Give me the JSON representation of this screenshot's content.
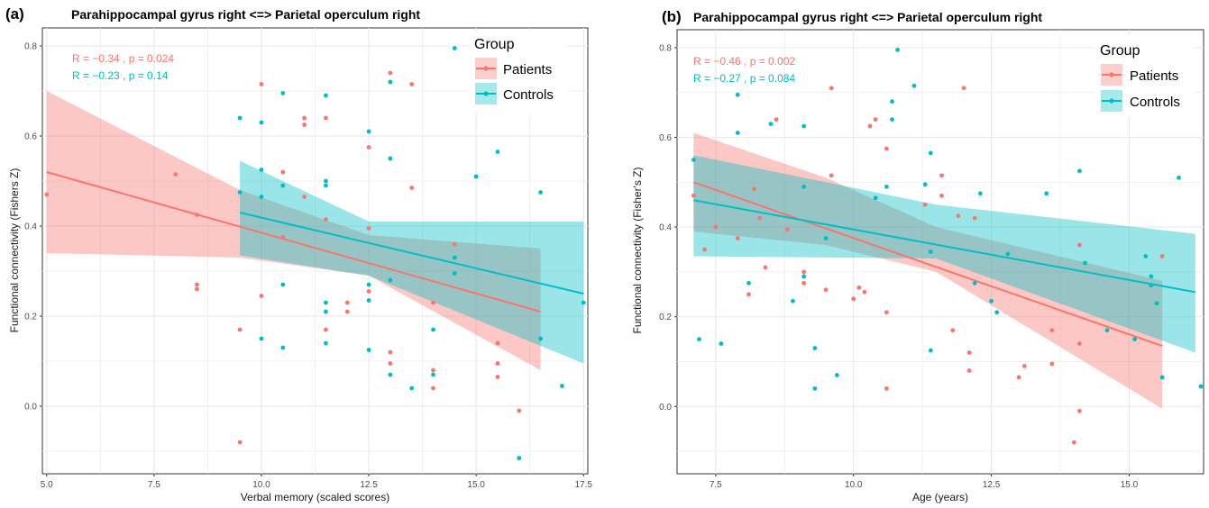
{
  "colors": {
    "patients": "#F8766D",
    "controls": "#00BFC4",
    "grid": "#ebebeb",
    "panel_border": "#333333"
  },
  "chart_data": [
    {
      "type": "scatter",
      "panel_label": "(a)",
      "title": "Parahippocampal gyrus right <=> Parietal operculum right",
      "xlabel": "Verbal memory (scaled scores)",
      "ylabel": "Functional connectivity (Fishers Z)",
      "xlim": [
        4.9,
        17.6
      ],
      "ylim": [
        -0.15,
        0.84
      ],
      "xticks": [
        5.0,
        7.5,
        10.0,
        12.5,
        15.0,
        17.5
      ],
      "xtick_labels": [
        "5.0",
        "7.5",
        "10.0",
        "12.5",
        "15.0",
        "17.5"
      ],
      "yticks": [
        0.0,
        0.2,
        0.4,
        0.6,
        0.8
      ],
      "ytick_labels": [
        "0.0",
        "0.2",
        "0.4",
        "0.6",
        "0.8"
      ],
      "grid": true,
      "legend": {
        "title": "Group",
        "position": "top-right"
      },
      "annotations": [
        {
          "series": "Patients",
          "text": "R = −0.34 , p = 0.024"
        },
        {
          "series": "Controls",
          "text": "R = −0.23 , p = 0.14"
        }
      ],
      "series": [
        {
          "name": "Patients",
          "color": "#F8766D",
          "fit": {
            "x": [
              5.0,
              16.5
            ],
            "y": [
              0.52,
              0.21
            ]
          },
          "band": {
            "x": [
              5.0,
              9.5,
              12.5,
              16.5
            ],
            "upper": [
              0.7,
              0.48,
              0.38,
              0.35
            ],
            "lower": [
              0.34,
              0.33,
              0.29,
              0.08
            ]
          },
          "points": [
            [
              5.0,
              0.47
            ],
            [
              8.0,
              0.515
            ],
            [
              8.5,
              0.425
            ],
            [
              8.5,
              0.27
            ],
            [
              8.5,
              0.26
            ],
            [
              9.5,
              0.17
            ],
            [
              9.5,
              -0.08
            ],
            [
              10.0,
              0.715
            ],
            [
              10.0,
              0.245
            ],
            [
              10.5,
              0.52
            ],
            [
              10.5,
              0.375
            ],
            [
              11.0,
              0.64
            ],
            [
              11.0,
              0.625
            ],
            [
              11.0,
              0.465
            ],
            [
              11.5,
              0.64
            ],
            [
              11.5,
              0.415
            ],
            [
              11.5,
              0.17
            ],
            [
              12.0,
              0.23
            ],
            [
              12.0,
              0.21
            ],
            [
              12.5,
              0.575
            ],
            [
              12.5,
              0.395
            ],
            [
              12.5,
              0.255
            ],
            [
              13.0,
              0.74
            ],
            [
              13.0,
              0.72
            ],
            [
              13.0,
              0.12
            ],
            [
              13.0,
              0.095
            ],
            [
              13.5,
              0.715
            ],
            [
              13.5,
              0.485
            ],
            [
              14.0,
              0.23
            ],
            [
              14.0,
              0.08
            ],
            [
              14.0,
              0.04
            ],
            [
              14.5,
              0.36
            ],
            [
              14.5,
              0.33
            ],
            [
              15.5,
              0.14
            ],
            [
              15.5,
              0.095
            ],
            [
              15.5,
              0.065
            ],
            [
              16.0,
              -0.01
            ]
          ]
        },
        {
          "name": "Controls",
          "color": "#00BFC4",
          "fit": {
            "x": [
              9.5,
              17.5
            ],
            "y": [
              0.43,
              0.25
            ]
          },
          "band": {
            "x": [
              9.5,
              12.5,
              17.5
            ],
            "upper": [
              0.545,
              0.41,
              0.41
            ],
            "lower": [
              0.335,
              0.29,
              0.095
            ]
          },
          "points": [
            [
              9.5,
              0.64
            ],
            [
              9.5,
              0.475
            ],
            [
              10.0,
              0.63
            ],
            [
              10.0,
              0.525
            ],
            [
              10.0,
              0.465
            ],
            [
              10.0,
              0.15
            ],
            [
              10.5,
              0.695
            ],
            [
              10.5,
              0.49
            ],
            [
              10.5,
              0.27
            ],
            [
              10.5,
              0.13
            ],
            [
              11.5,
              0.69
            ],
            [
              11.5,
              0.5
            ],
            [
              11.5,
              0.49
            ],
            [
              11.5,
              0.23
            ],
            [
              11.5,
              0.21
            ],
            [
              11.5,
              0.14
            ],
            [
              12.5,
              0.61
            ],
            [
              12.5,
              0.27
            ],
            [
              12.5,
              0.235
            ],
            [
              12.5,
              0.125
            ],
            [
              13.0,
              0.72
            ],
            [
              13.0,
              0.55
            ],
            [
              13.0,
              0.28
            ],
            [
              13.0,
              0.07
            ],
            [
              13.5,
              0.04
            ],
            [
              14.0,
              0.17
            ],
            [
              14.0,
              0.07
            ],
            [
              14.5,
              0.795
            ],
            [
              14.5,
              0.33
            ],
            [
              14.5,
              0.295
            ],
            [
              15.0,
              0.51
            ],
            [
              15.5,
              0.565
            ],
            [
              16.0,
              -0.115
            ],
            [
              16.5,
              0.475
            ],
            [
              16.5,
              0.15
            ],
            [
              17.0,
              0.045
            ],
            [
              17.5,
              0.23
            ]
          ]
        }
      ]
    },
    {
      "type": "scatter",
      "panel_label": "(b)",
      "title": "Parahippocampal gyrus right <=> Parietal operculum right",
      "xlabel": "Age (years)",
      "ylabel": "Functional connectivity (Fisher's Z)",
      "xlim": [
        6.8,
        16.35
      ],
      "ylim": [
        -0.15,
        0.84
      ],
      "xticks": [
        7.5,
        10.0,
        12.5,
        15.0
      ],
      "xtick_labels": [
        "7.5",
        "10.0",
        "12.5",
        "15.0"
      ],
      "yticks": [
        0.0,
        0.2,
        0.4,
        0.6,
        0.8
      ],
      "ytick_labels": [
        "0.0",
        "0.2",
        "0.4",
        "0.6",
        "0.8"
      ],
      "grid": true,
      "legend": {
        "title": "Group",
        "position": "top-right"
      },
      "annotations": [
        {
          "series": "Patients",
          "text": "R = −0.46 , p = 0.002"
        },
        {
          "series": "Controls",
          "text": "R = −0.27 , p = 0.084"
        }
      ],
      "series": [
        {
          "name": "Patients",
          "color": "#F8766D",
          "fit": {
            "x": [
              7.1,
              15.6
            ],
            "y": [
              0.5,
              0.135
            ]
          },
          "band": {
            "x": [
              7.1,
              9.5,
              11.5,
              15.6
            ],
            "upper": [
              0.61,
              0.51,
              0.4,
              0.28
            ],
            "lower": [
              0.39,
              0.36,
              0.3,
              -0.005
            ]
          },
          "points": [
            [
              7.1,
              0.47
            ],
            [
              7.3,
              0.35
            ],
            [
              7.5,
              0.4
            ],
            [
              7.9,
              0.375
            ],
            [
              8.1,
              0.25
            ],
            [
              8.2,
              0.485
            ],
            [
              8.3,
              0.42
            ],
            [
              8.4,
              0.31
            ],
            [
              8.6,
              0.64
            ],
            [
              8.8,
              0.395
            ],
            [
              9.1,
              0.3
            ],
            [
              9.1,
              0.275
            ],
            [
              9.6,
              0.71
            ],
            [
              9.6,
              0.515
            ],
            [
              9.5,
              0.26
            ],
            [
              10.1,
              0.265
            ],
            [
              10.2,
              0.255
            ],
            [
              10.0,
              0.24
            ],
            [
              10.3,
              0.625
            ],
            [
              10.4,
              0.64
            ],
            [
              10.6,
              0.575
            ],
            [
              10.6,
              0.21
            ],
            [
              10.6,
              0.04
            ],
            [
              11.3,
              0.45
            ],
            [
              11.6,
              0.515
            ],
            [
              11.6,
              0.47
            ],
            [
              11.8,
              0.17
            ],
            [
              11.9,
              0.425
            ],
            [
              12.0,
              0.71
            ],
            [
              12.1,
              0.12
            ],
            [
              12.1,
              0.08
            ],
            [
              12.2,
              0.42
            ],
            [
              13.0,
              0.065
            ],
            [
              13.1,
              0.09
            ],
            [
              13.6,
              0.17
            ],
            [
              13.6,
              0.095
            ],
            [
              14.0,
              -0.08
            ],
            [
              14.1,
              0.36
            ],
            [
              14.1,
              0.14
            ],
            [
              14.1,
              -0.01
            ],
            [
              15.1,
              0.15
            ],
            [
              15.6,
              0.335
            ]
          ]
        },
        {
          "name": "Controls",
          "color": "#00BFC4",
          "fit": {
            "x": [
              7.1,
              16.2
            ],
            "y": [
              0.46,
              0.255
            ]
          },
          "band": {
            "x": [
              7.1,
              11.5,
              16.2
            ],
            "upper": [
              0.56,
              0.45,
              0.385
            ],
            "lower": [
              0.335,
              0.33,
              0.12
            ]
          },
          "points": [
            [
              7.1,
              0.55
            ],
            [
              7.2,
              0.15
            ],
            [
              7.6,
              0.14
            ],
            [
              7.9,
              0.695
            ],
            [
              7.9,
              0.61
            ],
            [
              8.1,
              0.275
            ],
            [
              8.5,
              0.63
            ],
            [
              8.9,
              0.235
            ],
            [
              9.1,
              0.625
            ],
            [
              9.1,
              0.49
            ],
            [
              9.1,
              0.29
            ],
            [
              9.3,
              0.13
            ],
            [
              9.3,
              0.04
            ],
            [
              9.5,
              0.375
            ],
            [
              9.7,
              0.07
            ],
            [
              10.4,
              0.465
            ],
            [
              10.6,
              0.49
            ],
            [
              10.7,
              0.64
            ],
            [
              10.7,
              0.68
            ],
            [
              10.8,
              0.795
            ],
            [
              11.1,
              0.715
            ],
            [
              11.3,
              0.495
            ],
            [
              11.4,
              0.565
            ],
            [
              11.4,
              0.345
            ],
            [
              11.4,
              0.125
            ],
            [
              12.2,
              0.275
            ],
            [
              12.3,
              0.475
            ],
            [
              12.5,
              0.235
            ],
            [
              12.6,
              0.21
            ],
            [
              12.8,
              0.34
            ],
            [
              13.5,
              0.475
            ],
            [
              14.1,
              0.525
            ],
            [
              14.2,
              0.32
            ],
            [
              14.6,
              0.17
            ],
            [
              15.1,
              0.15
            ],
            [
              15.3,
              0.335
            ],
            [
              15.4,
              0.29
            ],
            [
              15.4,
              0.27
            ],
            [
              15.5,
              0.23
            ],
            [
              15.6,
              0.065
            ],
            [
              15.9,
              0.51
            ],
            [
              16.3,
              0.045
            ]
          ]
        }
      ]
    }
  ]
}
